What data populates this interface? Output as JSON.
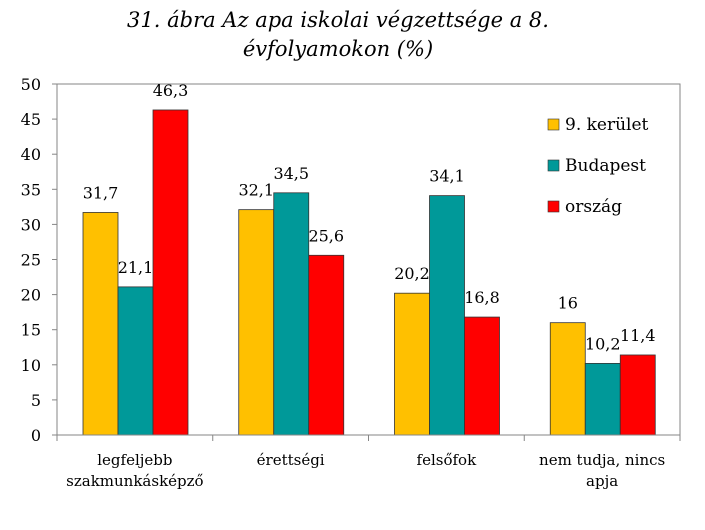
{
  "chart_data": {
    "type": "bar",
    "title_lines": [
      "31. ábra Az apa iskolai végzettsége a 8.",
      "évfolyamokon (%)"
    ],
    "categories": [
      [
        "legfeljebb",
        "szakmunkásképző"
      ],
      [
        "érettségi"
      ],
      [
        "felsőfok"
      ],
      [
        "nem tudja, nincs",
        "apja"
      ]
    ],
    "series": [
      {
        "name": "9. kerület",
        "color": "#FFC000",
        "values": [
          31.7,
          32.1,
          20.2,
          16
        ],
        "labels": [
          "31,7",
          "32,1",
          "20,2",
          "16"
        ]
      },
      {
        "name": "Budapest",
        "color": "#009999",
        "values": [
          21.1,
          34.5,
          34.1,
          10.2
        ],
        "labels": [
          "21,1",
          "34,5",
          "34,1",
          "10,2"
        ]
      },
      {
        "name": "ország",
        "color": "#FF0000",
        "values": [
          46.3,
          25.6,
          16.8,
          11.4
        ],
        "labels": [
          "46,3",
          "25,6",
          "16,8",
          "11,4"
        ]
      }
    ],
    "yticks": [
      "0",
      "5",
      "10",
      "15",
      "20",
      "25",
      "30",
      "35",
      "40",
      "45",
      "50"
    ],
    "ylim": [
      0,
      50
    ],
    "xlabel": "",
    "ylabel": "",
    "legend_position": "top-right",
    "grid": false
  }
}
